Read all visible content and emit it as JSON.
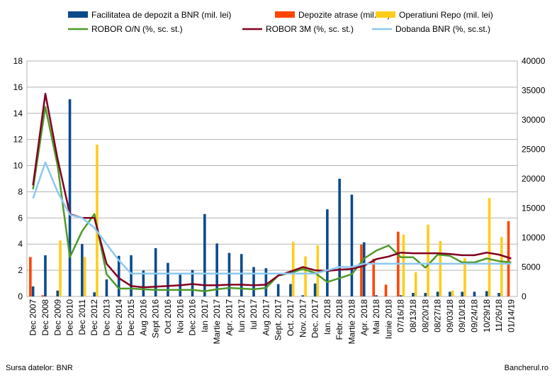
{
  "footer": {
    "source": "Sursa datelor: BNR",
    "brand": "Bancherul.ro"
  },
  "chart_data": {
    "type": "bar",
    "categories": [
      "Dec 2007",
      "Dec 2008",
      "Dec 2009",
      "Dec 2010",
      "Dec 2011",
      "Dec 2012",
      "Dec 2013",
      "Dec 2014",
      "Dec 2015",
      "Aug 2016",
      "Sept 2016",
      "Oct 2016",
      "Noi 2016",
      "Dec 2016",
      "Ian 2017",
      "Martie 2017",
      "Apr. 2017",
      "Iun 2017",
      "Iul 2017",
      "Aug 2017",
      "Sept. 2017",
      "Oct. 2017",
      "Nov. 2017",
      "Dec. 2017",
      "Ian. 2018",
      "Febr. 2018",
      "Martie 2018",
      "Apr. 2018",
      "Mai 2018",
      "Iunie 2018",
      "07/16/18",
      "08/13/18",
      "08/20/18",
      "08/27/18",
      "09/03/18",
      "09/10/18",
      "09/24/18",
      "10/29/18",
      "11/26/18",
      "01/14/19"
    ],
    "y_left": {
      "min": 0,
      "max": 18,
      "ticks": [
        0,
        2,
        4,
        6,
        8,
        10,
        12,
        14,
        16,
        18
      ]
    },
    "y_right": {
      "min": 0,
      "max": 40000,
      "ticks": [
        0,
        5000,
        10000,
        15000,
        20000,
        25000,
        30000,
        35000,
        40000
      ]
    },
    "grid": true,
    "legend_position": "top",
    "series": [
      {
        "name": "Facilitatea de depozit a BNR (mil. lei)",
        "type": "bar",
        "axis": "right",
        "color": "#0a4a8c",
        "values": [
          1700,
          7000,
          1000,
          33500,
          8900,
          700,
          2900,
          6900,
          7000,
          4400,
          8200,
          5700,
          3700,
          4500,
          14000,
          9000,
          7400,
          7200,
          5000,
          4800,
          2100,
          2100,
          200,
          2200,
          14800,
          20000,
          17300,
          9200,
          200,
          0,
          200,
          600,
          600,
          800,
          800,
          800,
          800,
          900,
          600,
          0
        ]
      },
      {
        "name": "Depozite atrase (mil. lei)",
        "type": "bar",
        "axis": "right",
        "color": "#ff4500",
        "values": [
          6700,
          200,
          0,
          0,
          0,
          0,
          0,
          0,
          0,
          0,
          0,
          0,
          0,
          0,
          0,
          0,
          0,
          0,
          0,
          0,
          0,
          0,
          0,
          0,
          0,
          0,
          0,
          8800,
          6400,
          2000,
          11000,
          0,
          0,
          0,
          0,
          0,
          0,
          0,
          0,
          12800
        ]
      },
      {
        "name": "Operatiuni Repo (mil. lei)",
        "type": "bar",
        "axis": "right",
        "color": "#ffcc1a",
        "values": [
          0,
          0,
          9500,
          0,
          6700,
          25800,
          0,
          0,
          0,
          0,
          0,
          0,
          0,
          0,
          0,
          0,
          0,
          0,
          0,
          0,
          0,
          9300,
          6800,
          8700,
          0,
          0,
          0,
          0,
          0,
          0,
          10500,
          4100,
          12200,
          9400,
          1000,
          6500,
          0,
          16700,
          10100,
          0
        ]
      },
      {
        "name": "ROBOR O/N (%, sc. st.)",
        "type": "line",
        "axis": "left",
        "color": "#4e9a2a",
        "values": [
          8.2,
          14.5,
          10.0,
          3.0,
          5.0,
          6.3,
          1.7,
          0.6,
          0.6,
          0.55,
          0.5,
          0.5,
          0.5,
          0.5,
          0.4,
          0.55,
          0.65,
          0.6,
          0.55,
          0.65,
          1.6,
          1.8,
          2.1,
          1.8,
          1.1,
          1.4,
          1.7,
          2.9,
          3.5,
          3.9,
          3.0,
          3.0,
          2.2,
          3.2,
          3.1,
          2.6,
          2.6,
          2.9,
          2.7,
          2.6
        ]
      },
      {
        "name": "ROBOR 3M (%, sc. st.)",
        "type": "line",
        "axis": "left",
        "color": "#800020",
        "values": [
          8.5,
          15.5,
          10.5,
          6.3,
          6.0,
          6.0,
          2.5,
          1.4,
          0.8,
          0.7,
          0.75,
          0.8,
          0.85,
          0.95,
          0.85,
          0.85,
          0.9,
          0.9,
          0.85,
          0.9,
          1.6,
          1.9,
          2.25,
          2.0,
          1.95,
          2.05,
          2.1,
          2.35,
          2.85,
          3.05,
          3.35,
          3.3,
          3.3,
          3.3,
          3.25,
          3.15,
          3.15,
          3.35,
          3.2,
          2.9
        ]
      },
      {
        "name": "Dobanda BNR (%, sc.st.)",
        "type": "line",
        "axis": "left",
        "color": "#8cc8f0",
        "values": [
          7.5,
          10.25,
          8.0,
          6.25,
          6.0,
          5.25,
          4.0,
          2.75,
          1.75,
          1.75,
          1.75,
          1.75,
          1.75,
          1.75,
          1.75,
          1.75,
          1.75,
          1.75,
          1.75,
          1.75,
          1.75,
          1.75,
          1.75,
          1.75,
          2.0,
          2.25,
          2.25,
          2.5,
          2.5,
          2.5,
          2.5,
          2.5,
          2.5,
          2.5,
          2.5,
          2.5,
          2.5,
          2.5,
          2.5,
          2.5
        ]
      }
    ]
  }
}
